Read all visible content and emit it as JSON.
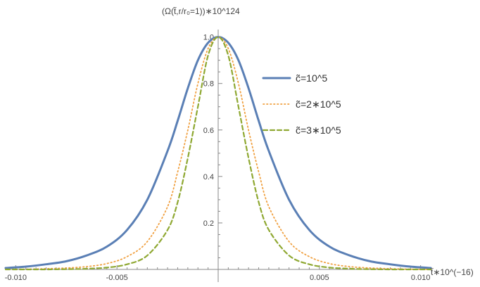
{
  "chart_data": {
    "type": "line",
    "title": "",
    "ylabel": "(Ω(t̃,r/r₀=1))∗10^124",
    "xlabel": "t̃∗10^(−16)",
    "xlim": [
      -0.0105,
      0.0105
    ],
    "ylim": [
      0,
      1.02
    ],
    "x_ticks": [
      -0.01,
      -0.005,
      0.005,
      0.01
    ],
    "x_tick_labels": [
      "-0.010",
      "-0.005",
      "0.005",
      "0.010"
    ],
    "y_ticks": [
      0.2,
      0.4,
      0.6,
      0.8,
      1.0
    ],
    "y_tick_labels": [
      "0.2",
      "0.4",
      "0.6",
      "0.8",
      "1.0"
    ],
    "grid": false,
    "legend_position": "top-right",
    "x": [
      -0.0105,
      -0.0095,
      -0.0085,
      -0.0075,
      -0.0065,
      -0.0055,
      -0.0045,
      -0.0035,
      -0.0025,
      -0.002,
      -0.0015,
      -0.001,
      -0.0005,
      0.0,
      0.0005,
      0.001,
      0.0015,
      0.002,
      0.0025,
      0.0035,
      0.0045,
      0.0055,
      0.0065,
      0.0075,
      0.0085,
      0.0095,
      0.0105
    ],
    "series": [
      {
        "name": "c̃=10^5",
        "color": "#5a7fb5",
        "style": "solid",
        "values": [
          0.006,
          0.012,
          0.022,
          0.035,
          0.06,
          0.098,
          0.17,
          0.3,
          0.51,
          0.64,
          0.78,
          0.9,
          0.975,
          1.0,
          0.975,
          0.9,
          0.78,
          0.64,
          0.51,
          0.3,
          0.17,
          0.098,
          0.06,
          0.035,
          0.022,
          0.012,
          0.006
        ]
      },
      {
        "name": "c̃=2∗10^5",
        "color": "#f0a040",
        "style": "dotted",
        "values": [
          0.0,
          0.001,
          0.003,
          0.006,
          0.012,
          0.025,
          0.055,
          0.12,
          0.27,
          0.42,
          0.6,
          0.8,
          0.95,
          1.0,
          0.95,
          0.8,
          0.6,
          0.42,
          0.27,
          0.12,
          0.055,
          0.025,
          0.012,
          0.006,
          0.003,
          0.001,
          0.0
        ]
      },
      {
        "name": "c̃=3∗10^5",
        "color": "#8fa832",
        "style": "dashed",
        "values": [
          0.0,
          0.0,
          0.0,
          0.001,
          0.003,
          0.008,
          0.022,
          0.06,
          0.17,
          0.29,
          0.48,
          0.7,
          0.92,
          1.0,
          0.92,
          0.7,
          0.48,
          0.29,
          0.17,
          0.06,
          0.022,
          0.008,
          0.003,
          0.001,
          0.0,
          0.0,
          0.0
        ]
      }
    ]
  }
}
